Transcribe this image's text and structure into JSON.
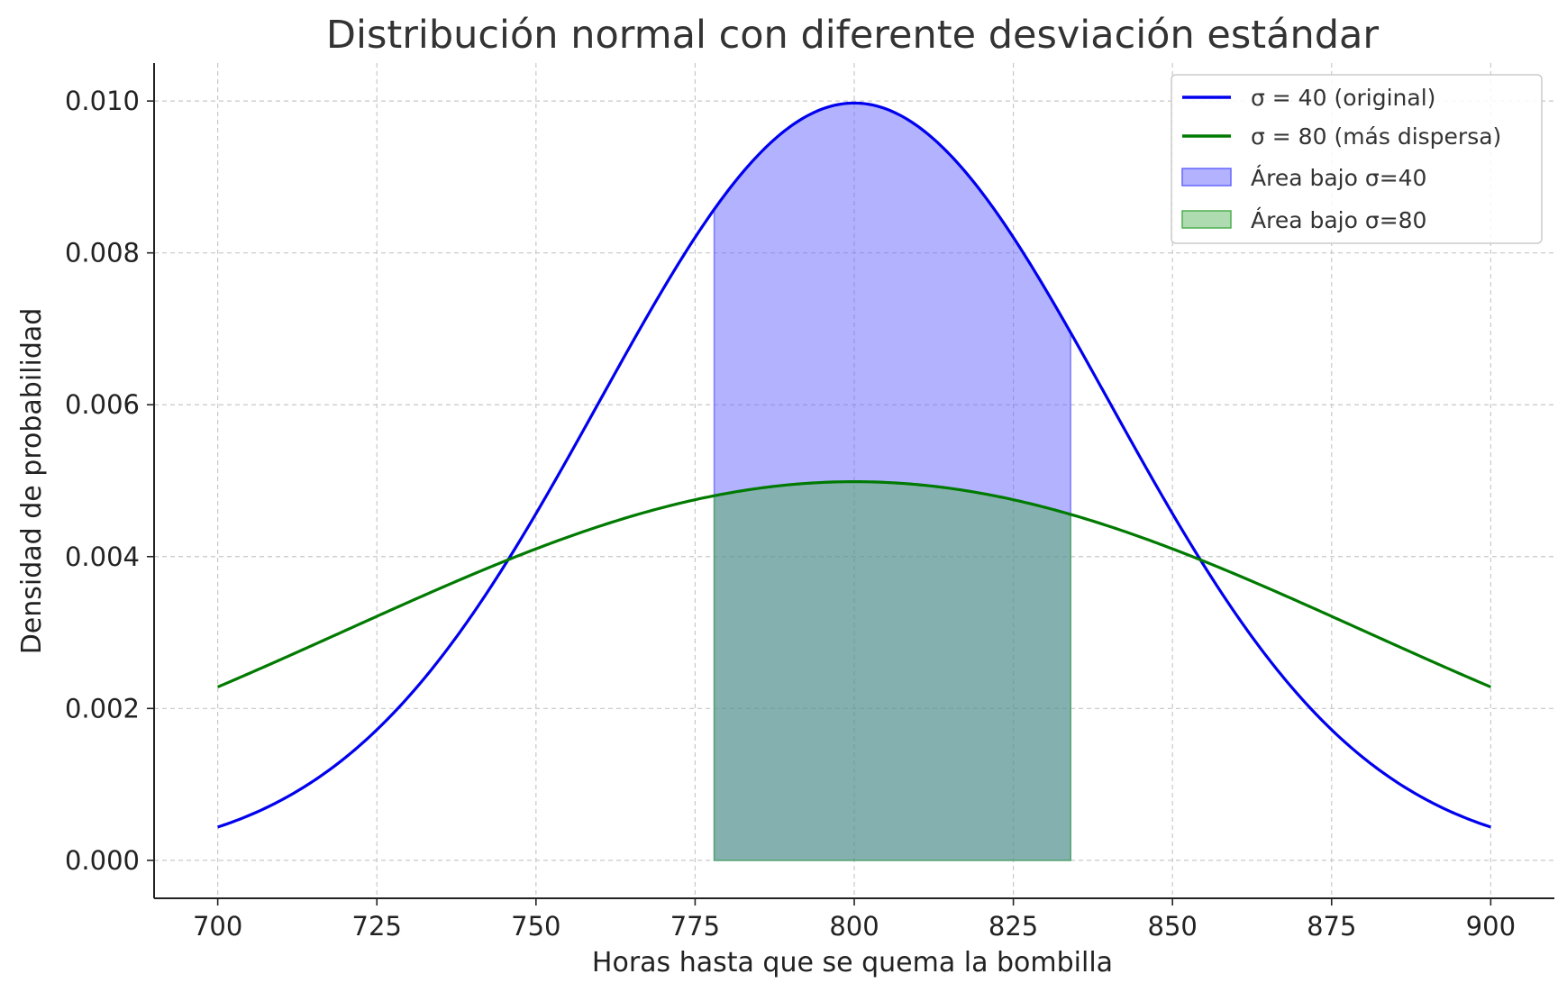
{
  "chart_data": {
    "type": "line",
    "title": "Distribución normal con diferente desviación estándar",
    "xlabel": "Horas hasta que se quema la bombilla",
    "ylabel": "Densidad de probabilidad",
    "xlim": [
      690,
      910
    ],
    "ylim": [
      -0.0005,
      0.0105
    ],
    "x_ticks": [
      700,
      725,
      750,
      775,
      800,
      825,
      850,
      875,
      900
    ],
    "y_ticks": [
      0.0,
      0.002,
      0.004,
      0.006,
      0.008,
      0.01
    ],
    "x_tick_labels": [
      "700",
      "725",
      "750",
      "775",
      "800",
      "825",
      "850",
      "875",
      "900"
    ],
    "y_tick_labels": [
      "0.000",
      "0.002",
      "0.004",
      "0.006",
      "0.008",
      "0.010"
    ],
    "grid": true,
    "legend_position": "top-right",
    "series": [
      {
        "name": "σ = 40 (original)",
        "color": "#0000ee",
        "mean": 800,
        "std": 40,
        "x": [
          700,
          710,
          720,
          730,
          740,
          750,
          760,
          770,
          780,
          790,
          800,
          810,
          820,
          830,
          840,
          850,
          860,
          870,
          880,
          890,
          900
        ],
        "values": [
          0.00044,
          0.00079,
          0.00135,
          0.00216,
          0.00324,
          0.00457,
          0.00605,
          0.00753,
          0.0088,
          0.00967,
          0.00997,
          0.00967,
          0.0088,
          0.00753,
          0.00605,
          0.00457,
          0.00324,
          0.00216,
          0.00135,
          0.00079,
          0.00044
        ]
      },
      {
        "name": "σ = 80 (más dispersa)",
        "color": "#007a00",
        "mean": 800,
        "std": 80,
        "x": [
          700,
          710,
          720,
          730,
          740,
          750,
          760,
          770,
          780,
          790,
          800,
          810,
          820,
          830,
          840,
          850,
          860,
          870,
          880,
          890,
          900
        ],
        "values": [
          0.00228,
          0.00266,
          0.00303,
          0.0034,
          0.00376,
          0.0041,
          0.0044,
          0.00465,
          0.00484,
          0.00495,
          0.00499,
          0.00495,
          0.00484,
          0.00465,
          0.0044,
          0.0041,
          0.00376,
          0.0034,
          0.00303,
          0.00266,
          0.00228
        ]
      }
    ],
    "areas": [
      {
        "name": "Área bajo σ=40",
        "series": 0,
        "x_range": [
          778,
          834
        ],
        "color": "#6666ff",
        "opacity": 0.5
      },
      {
        "name": "Área bajo σ=80",
        "series": 1,
        "x_range": [
          778,
          834
        ],
        "color": "#4caf50",
        "opacity": 0.45
      }
    ]
  }
}
